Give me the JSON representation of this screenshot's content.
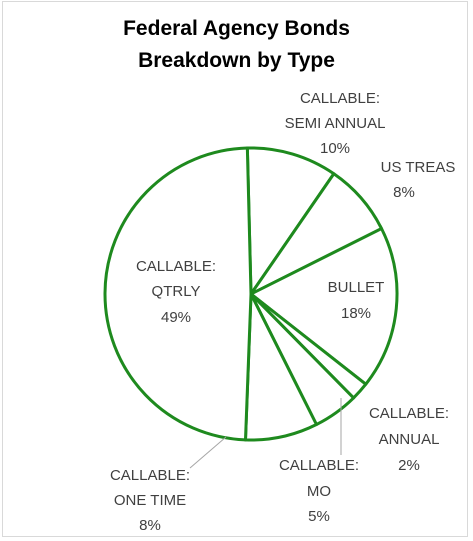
{
  "chart_data": {
    "type": "pie",
    "title": "Federal Agency Bonds",
    "subtitle": "Breakdown  by Type",
    "slices": [
      {
        "name": "CALLABLE: SEMI ANNUAL",
        "value": 10,
        "label_lines": [
          "CALLABLE:",
          "SEMI ANNUAL",
          "10%"
        ]
      },
      {
        "name": "US TREAS",
        "value": 8,
        "label_lines": [
          "US TREAS",
          "8%"
        ]
      },
      {
        "name": "BULLET",
        "value": 18,
        "label_lines": [
          "BULLET",
          "18%"
        ]
      },
      {
        "name": "CALLABLE: ANNUAL",
        "value": 2,
        "label_lines": [
          "CALLABLE:",
          "ANNUAL",
          "2%"
        ]
      },
      {
        "name": "CALLABLE: MO",
        "value": 5,
        "label_lines": [
          "CALLABLE:",
          "MO",
          "5%"
        ]
      },
      {
        "name": "CALLABLE: ONE TIME",
        "value": 8,
        "label_lines": [
          "CALLABLE:",
          "ONE TIME",
          "8%"
        ]
      },
      {
        "name": "CALLABLE: QTRLY",
        "value": 49,
        "label_lines": [
          "CALLABLE:",
          "QTRLY",
          "49%"
        ]
      }
    ],
    "colors": {
      "slice_fill": "#ffffff",
      "slice_stroke": "#1e8a1e",
      "label": "#404040",
      "leader": "#a6a6a6"
    }
  }
}
